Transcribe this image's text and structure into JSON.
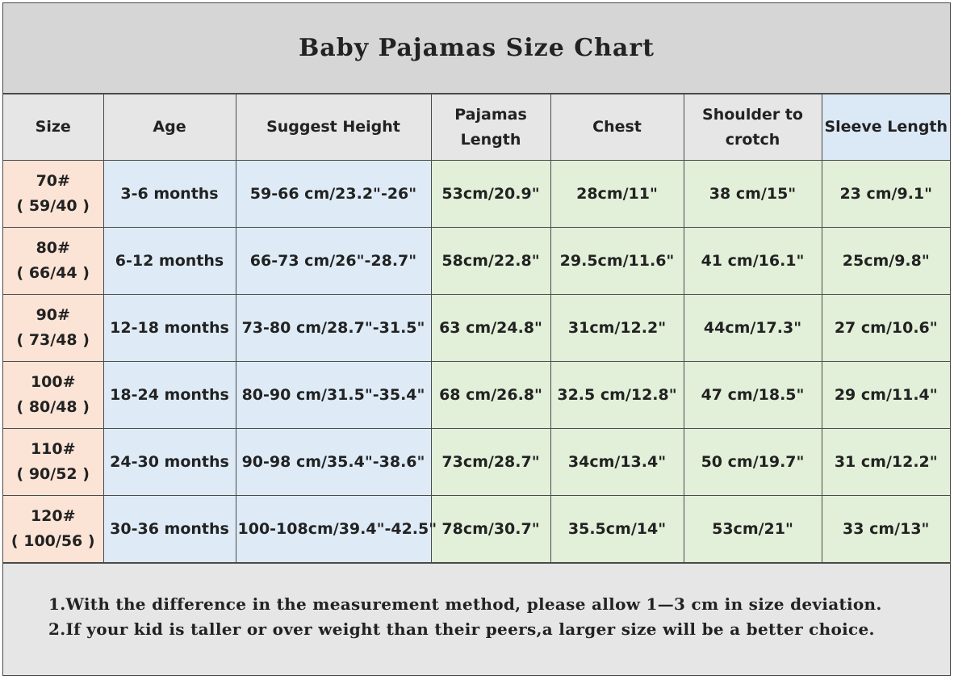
{
  "title": "Baby Pajamas Size Chart",
  "headers": {
    "size": "Size",
    "age": "Age",
    "height": "Suggest Height",
    "pajamas_line1": "Pajamas",
    "pajamas_line2": "Length",
    "chest": "Chest",
    "shoulder_line1": "Shoulder to",
    "shoulder_line2": "crotch",
    "sleeve": "Sleeve Length"
  },
  "rows": [
    {
      "size": "70#",
      "size_sub": "( 59/40 )",
      "age": "3-6 months",
      "height": "59-66 cm/23.2\"-26\"",
      "pajamas": "53cm/20.9\"",
      "chest": "28cm/11\"",
      "shoulder": "38 cm/15\"",
      "sleeve": "23 cm/9.1\""
    },
    {
      "size": "80#",
      "size_sub": "( 66/44 )",
      "age": "6-12 months",
      "height": "66-73 cm/26\"-28.7\"",
      "pajamas": "58cm/22.8\"",
      "chest": "29.5cm/11.6\"",
      "shoulder": "41 cm/16.1\"",
      "sleeve": "25cm/9.8\""
    },
    {
      "size": "90#",
      "size_sub": "( 73/48 )",
      "age": "12-18 months",
      "height": "73-80 cm/28.7\"-31.5\"",
      "pajamas": "63 cm/24.8\"",
      "chest": "31cm/12.2\"",
      "shoulder": "44cm/17.3\"",
      "sleeve": "27 cm/10.6\""
    },
    {
      "size": "100#",
      "size_sub": "( 80/48 )",
      "age": "18-24 months",
      "height": "80-90 cm/31.5\"-35.4\"",
      "pajamas": "68 cm/26.8\"",
      "chest": "32.5 cm/12.8\"",
      "shoulder": "47 cm/18.5\"",
      "sleeve": "29 cm/11.4\""
    },
    {
      "size": "110#",
      "size_sub": "( 90/52 )",
      "age": "24-30 months",
      "height": "90-98 cm/35.4\"-38.6\"",
      "pajamas": "73cm/28.7\"",
      "chest": "34cm/13.4\"",
      "shoulder": "50 cm/19.7\"",
      "sleeve": "31 cm/12.2\""
    },
    {
      "size": "120#",
      "size_sub": "( 100/56 )",
      "age": "30-36 months",
      "height": "100-108cm/39.4\"-42.5\"",
      "pajamas": "78cm/30.7\"",
      "chest": "35.5cm/14\"",
      "shoulder": "53cm/21\"",
      "sleeve": "33 cm/13\""
    }
  ],
  "notes": [
    "1.With the difference in the measurement method, please allow 1—3 cm in size deviation.",
    "2.If your kid is taller or over weight than their peers,a larger size will be a better choice."
  ],
  "colors": {
    "size_col": "#fbe4d6",
    "age_height_cols": "#deebf7",
    "measure_cols": "#e2efd9",
    "header": "#e6e6e6",
    "title_bg": "#d6d6d6"
  }
}
